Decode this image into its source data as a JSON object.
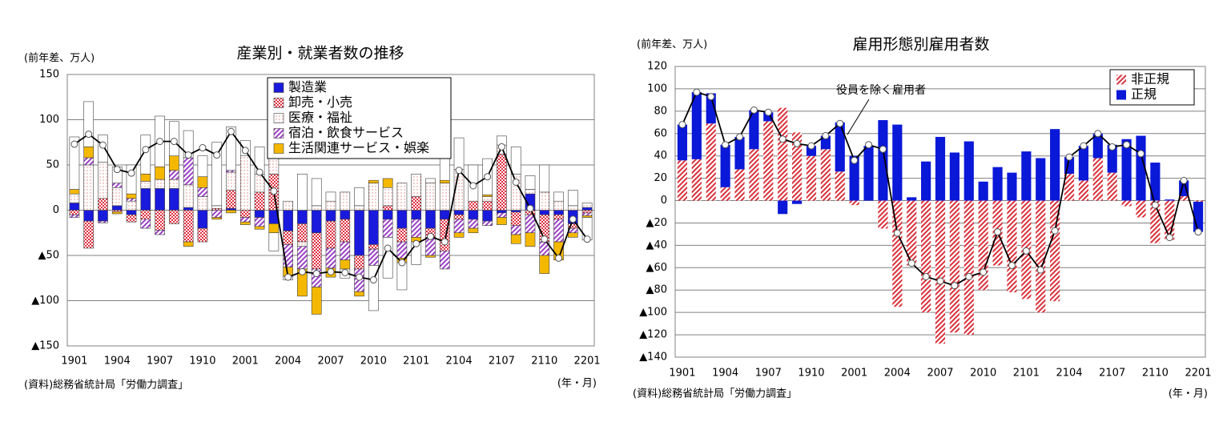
{
  "chart_data": [
    {
      "type": "bar",
      "stacked": true,
      "title": "産業別・就業者数の推移",
      "y_label": "(前年差、万人)",
      "x_label": "(年・月)",
      "source": "(資料)総務省統計局「労働力調査」",
      "categories": [
        "1901",
        null,
        null,
        "1904",
        null,
        null,
        "1907",
        null,
        null,
        "1910",
        null,
        null,
        "2001",
        null,
        null,
        "2004",
        null,
        null,
        "2007",
        null,
        null,
        "2010",
        null,
        null,
        "2101",
        null,
        null,
        "2104",
        null,
        null,
        "2107",
        null,
        null,
        "2110",
        null,
        null,
        "2201"
      ],
      "ylim": [
        -150,
        150
      ],
      "yticks": [
        150,
        100,
        50,
        0,
        {
          "value": -50,
          "label": "▲50"
        },
        {
          "value": -100,
          "label": "▲100"
        },
        {
          "value": -150,
          "label": "▲150"
        }
      ],
      "grid": true,
      "legend": "upper center",
      "bar_edge_color": "#404040",
      "series": [
        {
          "name": "製造業",
          "color": "#1a1adc",
          "values": [
            8,
            -12,
            -12,
            5,
            -5,
            24,
            24,
            24,
            3,
            -20,
            0,
            2,
            0,
            -8,
            -15,
            -23,
            -15,
            -25,
            -12,
            -10,
            -50,
            -38,
            -10,
            -20,
            -10,
            -20,
            -10,
            -5,
            -10,
            -12,
            -3,
            -2,
            18,
            -5,
            -5,
            -15,
            3
          ]
        },
        {
          "name": "卸売・小売",
          "color": "#e03040",
          "pattern": "dense-dots",
          "values": [
            -5,
            -30,
            13,
            -2,
            -8,
            -10,
            -22,
            -15,
            -35,
            -15,
            2,
            20,
            -8,
            20,
            40,
            -15,
            -20,
            -40,
            -30,
            -25,
            -15,
            -5,
            5,
            -15,
            15,
            -10,
            -35,
            -5,
            10,
            10,
            62,
            -15,
            -5,
            -30,
            -5,
            -5,
            -3
          ]
        },
        {
          "name": "医療・福祉",
          "color": "#e08080",
          "pattern": "dots",
          "values": [
            10,
            50,
            40,
            20,
            10,
            8,
            10,
            10,
            25,
            15,
            3,
            20,
            60,
            20,
            30,
            10,
            -5,
            5,
            10,
            20,
            5,
            30,
            20,
            30,
            25,
            30,
            30,
            45,
            0,
            5,
            10,
            40,
            5,
            20,
            10,
            5,
            5
          ]
        },
        {
          "name": "宿泊・飲食サービス",
          "color": "#9b3fc8",
          "pattern": "hatch",
          "values": [
            -3,
            8,
            -2,
            5,
            3,
            -10,
            -5,
            10,
            30,
            10,
            -8,
            2,
            -5,
            -10,
            5,
            -25,
            -25,
            -20,
            -22,
            -20,
            -25,
            -18,
            -20,
            -18,
            -20,
            -20,
            -20,
            -15,
            -10,
            -5,
            -5,
            -10,
            -20,
            -15,
            -25,
            -5,
            -3
          ]
        },
        {
          "name": "生活関連サービス・娯楽",
          "color": "#f5b800",
          "values": [
            5,
            12,
            0,
            -2,
            5,
            8,
            14,
            16,
            -5,
            12,
            -2,
            -3,
            -3,
            -3,
            -10,
            -10,
            -30,
            -30,
            -10,
            -10,
            -5,
            3,
            10,
            -5,
            -5,
            -2,
            3,
            -5,
            -5,
            2,
            -8,
            -10,
            -15,
            -20,
            -20,
            -5,
            -2
          ]
        },
        {
          "color": "#ffffff",
          "values": [
            58,
            50,
            30,
            18,
            32,
            43,
            56,
            38,
            30,
            23,
            70,
            48,
            17,
            30,
            -20,
            -4,
            40,
            30,
            10,
            -10,
            20,
            -50,
            -45,
            -30,
            -25,
            5,
            30,
            35,
            40,
            40,
            10,
            30,
            15,
            30,
            10,
            17,
            -25
          ]
        },
        {
          "type": "line",
          "color": "#000000",
          "values": [
            73,
            84,
            72,
            45,
            41,
            67,
            76,
            76,
            61,
            69,
            61,
            87,
            66,
            42,
            21,
            -74,
            -68,
            -70,
            -68,
            -69,
            -74,
            -77,
            -42,
            -58,
            -37,
            -29,
            -35,
            44,
            27,
            37,
            70,
            31,
            2,
            -32,
            -53,
            -10,
            -32
          ]
        }
      ]
    },
    {
      "type": "bar",
      "stacked": true,
      "title": "雇用形態別雇用者数",
      "y_label": "(前年差、万人)",
      "x_label": "(年・月)",
      "source": "(資料)総務省統計局「労働力調査」",
      "annotation": "役員を除く雇用者",
      "categories": [
        "1901",
        null,
        null,
        "1904",
        null,
        null,
        "1907",
        null,
        null,
        "1910",
        null,
        null,
        "2001",
        null,
        null,
        "2004",
        null,
        null,
        "2007",
        null,
        null,
        "2010",
        null,
        null,
        "2101",
        null,
        null,
        "2104",
        null,
        null,
        "2107",
        null,
        null,
        "2110",
        null,
        null,
        "2201"
      ],
      "ylim": [
        -140,
        120
      ],
      "yticks": [
        120,
        100,
        80,
        60,
        40,
        20,
        0,
        {
          "value": -20,
          "label": "▲20"
        },
        {
          "value": -40,
          "label": "▲40"
        },
        {
          "value": -60,
          "label": "▲60"
        },
        {
          "value": -80,
          "label": "▲80"
        },
        {
          "value": -100,
          "label": "▲100"
        },
        {
          "value": -120,
          "label": "▲120"
        },
        {
          "value": -140,
          "label": "▲140"
        }
      ],
      "grid": true,
      "legend": "upper right",
      "series": [
        {
          "name": "非正規",
          "color": "#d8303a",
          "pattern": "hatch",
          "values": [
            36,
            37,
            69,
            12,
            28,
            46,
            71,
            83,
            61,
            40,
            46,
            26,
            -4,
            0,
            -25,
            -95,
            -58,
            -100,
            -128,
            -118,
            -120,
            -80,
            -58,
            -82,
            -88,
            -100,
            -90,
            24,
            18,
            38,
            25,
            -5,
            -15,
            -38,
            -35,
            4,
            -1
          ]
        },
        {
          "name": "正規",
          "color": "#0a18d8",
          "values": [
            32,
            60,
            27,
            38,
            29,
            35,
            8,
            -12,
            -3,
            9,
            12,
            44,
            40,
            49,
            72,
            68,
            3,
            35,
            57,
            43,
            53,
            17,
            30,
            25,
            44,
            38,
            64,
            15,
            31,
            22,
            25,
            55,
            58,
            34,
            1,
            14,
            -27
          ]
        },
        {
          "type": "line",
          "color": "#000000",
          "values": [
            68,
            97,
            93,
            50,
            57,
            81,
            79,
            55,
            51,
            49,
            58,
            69,
            36,
            50,
            46,
            -29,
            -56,
            -68,
            -72,
            -76,
            -68,
            -64,
            -28,
            -58,
            -45,
            -62,
            -27,
            39,
            49,
            60,
            48,
            50,
            42,
            -4,
            -33,
            18,
            -28
          ]
        }
      ]
    }
  ]
}
